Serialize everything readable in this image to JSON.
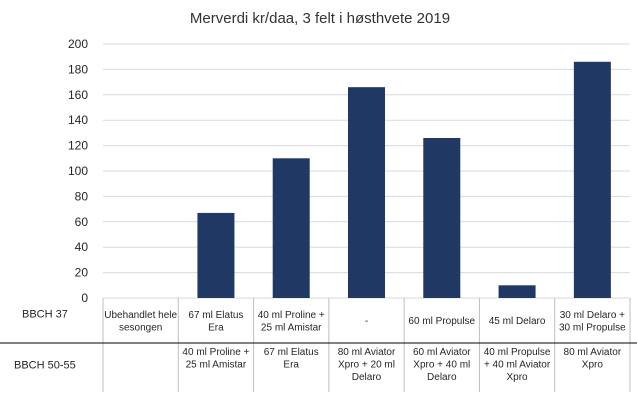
{
  "chart_data": {
    "type": "bar",
    "title": "Merverdi kr/daa, 3 felt i høsthvete 2019",
    "ylim": [
      0,
      200
    ],
    "yticks": [
      0,
      20,
      40,
      60,
      80,
      100,
      120,
      140,
      160,
      180,
      200
    ],
    "values": [
      0,
      67,
      110,
      166,
      126,
      10,
      186
    ],
    "bar_color": "#203864",
    "grid": true,
    "legend": "none",
    "category_rows": [
      {
        "label": "BBCH 37",
        "cells": [
          "Ubehandlet hele sesongen",
          "67 ml Elatus Era",
          "40 ml Proline + 25 ml Amistar",
          "-",
          "60 ml Propulse",
          "45 ml Delaro",
          "30 ml Delaro + 30 ml Propulse"
        ]
      },
      {
        "label": "BBCH  50-55",
        "cells": [
          "",
          "40 ml Proline + 25 ml Amistar",
          "67 ml Elatus Era",
          "80 ml Aviator Xpro + 20 ml Delaro",
          "60 ml Aviator Xpro + 40 ml Delaro",
          "40 ml Propulse + 40 ml Aviator Xpro",
          "80 ml Aviator Xpro"
        ]
      }
    ]
  }
}
